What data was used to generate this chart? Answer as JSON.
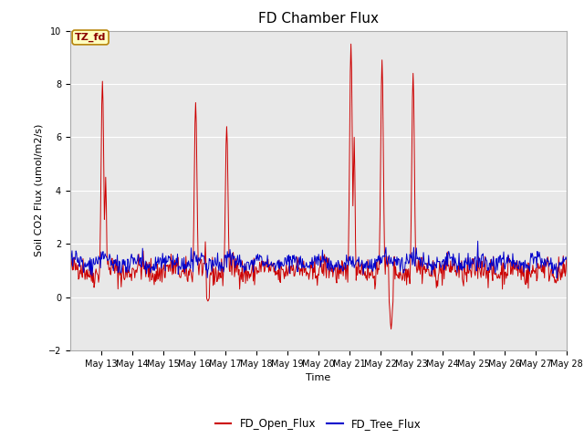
{
  "title": "FD Chamber Flux",
  "xlabel": "Time",
  "ylabel": "Soil CO2 Flux (umol/m2/s)",
  "ylim": [
    -2,
    10
  ],
  "yticks": [
    -2,
    0,
    2,
    4,
    6,
    8,
    10
  ],
  "xlim_start": 12,
  "xlim_end": 28,
  "annotation_text": "TZ_fd",
  "annotation_bg": "#ffffc0",
  "annotation_border": "#b8860b",
  "open_flux_color": "#cc0000",
  "tree_flux_color": "#0000cc",
  "legend_open": "FD_Open_Flux",
  "legend_tree": "FD_Tree_Flux",
  "background_color": "#e8e8e8",
  "title_fontsize": 11,
  "label_fontsize": 8,
  "tick_fontsize": 7,
  "seed": 42
}
